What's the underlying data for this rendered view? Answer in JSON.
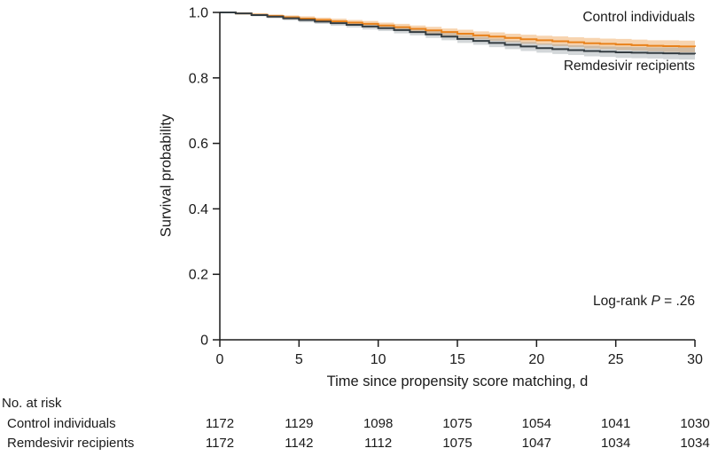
{
  "labels": {
    "logrank_prefix": "Log-rank ",
    "logrank_p": "P",
    "logrank_suffix": " = .26"
  },
  "chart_data": {
    "type": "line",
    "subtype": "kaplan-meier-step",
    "title": "",
    "xlabel": "Time since propensity score matching, d",
    "ylabel": "Survival probability",
    "xlim": [
      0,
      30
    ],
    "ylim": [
      0,
      1.0
    ],
    "x_ticks": [
      0,
      5,
      10,
      15,
      20,
      25,
      30
    ],
    "y_ticks": [
      0,
      0.2,
      0.4,
      0.6,
      0.8,
      1.0
    ],
    "y_tick_labels": [
      "0",
      "0.2",
      "0.4",
      "0.6",
      "0.8",
      "1.0"
    ],
    "annotation": "Log-rank P = .26",
    "legend_position": "labels-at-line-ends",
    "grid": false,
    "series": [
      {
        "id": "control",
        "name": "Control individuals",
        "color": "#E8821C",
        "band_color": "rgba(238,160,80,0.45)",
        "x": [
          0,
          1,
          2,
          3,
          4,
          5,
          6,
          7,
          8,
          9,
          10,
          11,
          12,
          13,
          14,
          15,
          16,
          17,
          18,
          19,
          20,
          21,
          22,
          23,
          24,
          25,
          26,
          27,
          28,
          29,
          30
        ],
        "values": [
          1.0,
          0.997,
          0.993,
          0.989,
          0.985,
          0.981,
          0.977,
          0.973,
          0.969,
          0.965,
          0.96,
          0.955,
          0.95,
          0.945,
          0.94,
          0.935,
          0.93,
          0.926,
          0.922,
          0.918,
          0.915,
          0.912,
          0.909,
          0.906,
          0.904,
          0.902,
          0.9,
          0.898,
          0.897,
          0.896,
          0.895
        ],
        "ci_half_width": [
          0.001,
          0.003,
          0.004,
          0.005,
          0.006,
          0.007,
          0.007,
          0.008,
          0.008,
          0.009,
          0.009,
          0.01,
          0.01,
          0.011,
          0.011,
          0.012,
          0.012,
          0.013,
          0.013,
          0.014,
          0.014,
          0.015,
          0.015,
          0.016,
          0.016,
          0.017,
          0.017,
          0.017,
          0.018,
          0.018,
          0.018
        ]
      },
      {
        "id": "remdesivir",
        "name": "Remdesivir recipients",
        "color": "#343D42",
        "band_color": "rgba(130,140,145,0.35)",
        "x": [
          0,
          1,
          2,
          3,
          4,
          5,
          6,
          7,
          8,
          9,
          10,
          11,
          12,
          13,
          14,
          15,
          16,
          17,
          18,
          19,
          20,
          21,
          22,
          23,
          24,
          25,
          26,
          27,
          28,
          29,
          30
        ],
        "values": [
          1.0,
          0.997,
          0.992,
          0.987,
          0.982,
          0.977,
          0.972,
          0.967,
          0.962,
          0.957,
          0.952,
          0.946,
          0.94,
          0.933,
          0.926,
          0.919,
          0.913,
          0.907,
          0.901,
          0.896,
          0.891,
          0.888,
          0.885,
          0.882,
          0.88,
          0.878,
          0.877,
          0.876,
          0.875,
          0.874,
          0.873
        ],
        "ci_half_width": [
          0.001,
          0.003,
          0.004,
          0.005,
          0.006,
          0.007,
          0.007,
          0.008,
          0.008,
          0.009,
          0.009,
          0.01,
          0.01,
          0.011,
          0.011,
          0.012,
          0.012,
          0.013,
          0.013,
          0.014,
          0.014,
          0.015,
          0.015,
          0.016,
          0.016,
          0.017,
          0.017,
          0.017,
          0.018,
          0.018,
          0.018
        ]
      }
    ],
    "risk_table": {
      "title": "No. at risk",
      "times": [
        0,
        5,
        10,
        15,
        20,
        25,
        30
      ],
      "rows": [
        {
          "label": "Control individuals",
          "counts": [
            1172,
            1129,
            1098,
            1075,
            1054,
            1041,
            1030
          ]
        },
        {
          "label": "Remdesivir recipients",
          "counts": [
            1172,
            1142,
            1112,
            1075,
            1047,
            1034,
            1034
          ]
        }
      ]
    }
  }
}
